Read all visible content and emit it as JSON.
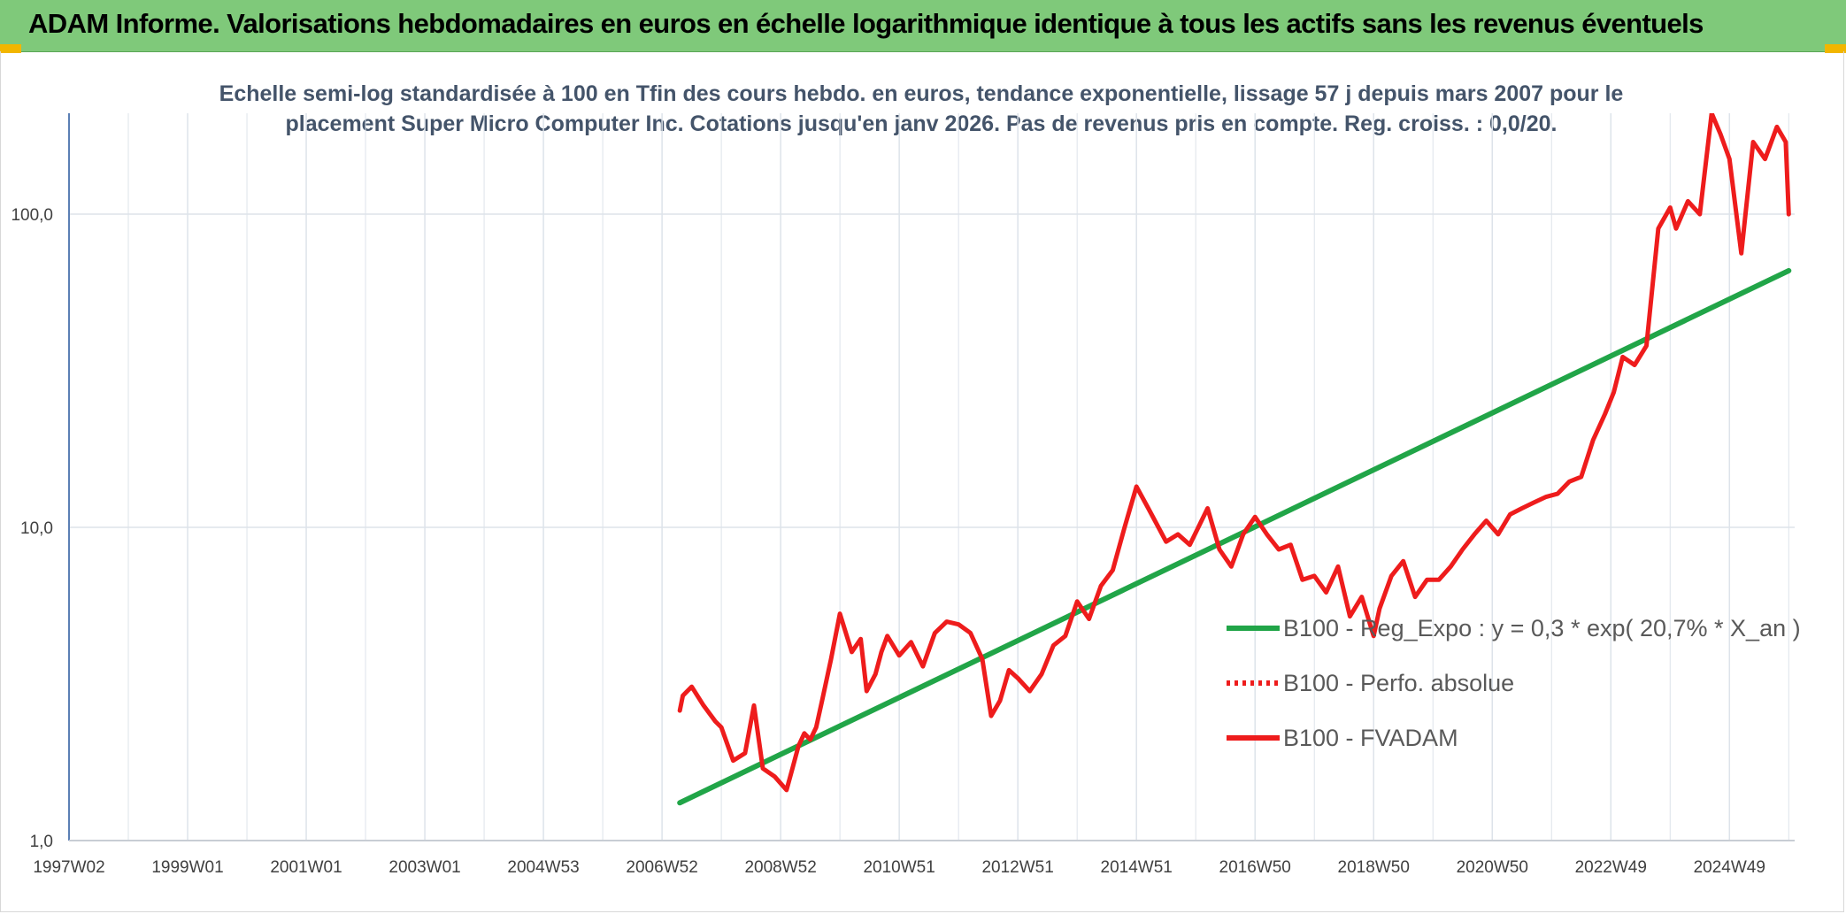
{
  "banner": {
    "title": "ADAM Informe. Valorisations hebdomadaires en euros en échelle logarithmique identique à tous les actifs sans les revenus éventuels"
  },
  "colors": {
    "banner_bg": "#7fc97a",
    "corner_marks": "#f2b600",
    "trend_line": "#21a548",
    "price_line": "#ee1c1c",
    "grid": "#dde3ea"
  },
  "chart_data": {
    "type": "line",
    "title_lines": [
      "Echelle semi-log standardisée à 100 en Tfin des cours hebdo. en euros, tendance exponentielle, lissage 57 j depuis mars 2007 pour le",
      "placement Super Micro Computer Inc. Cotations jusqu'en janv 2026. Pas de revenus pris en compte. Reg. croiss. : 0,0/20."
    ],
    "y_scale": "log",
    "ylim": [
      1,
      210
    ],
    "y_ticks": [
      {
        "value": 1,
        "label": "1,0"
      },
      {
        "value": 10,
        "label": "10,0"
      },
      {
        "value": 100,
        "label": "100,0"
      }
    ],
    "xlim": [
      1997.0,
      2026.1
    ],
    "x_ticks": [
      {
        "value": 1997.0,
        "label": "1997W02"
      },
      {
        "value": 1999.0,
        "label": "1999W01"
      },
      {
        "value": 2001.0,
        "label": "2001W01"
      },
      {
        "value": 2003.0,
        "label": "2003W01"
      },
      {
        "value": 2005.0,
        "label": "2004W53"
      },
      {
        "value": 2007.0,
        "label": "2006W52"
      },
      {
        "value": 2009.0,
        "label": "2008W52"
      },
      {
        "value": 2011.0,
        "label": "2010W51"
      },
      {
        "value": 2013.0,
        "label": "2012W51"
      },
      {
        "value": 2015.0,
        "label": "2014W51"
      },
      {
        "value": 2017.0,
        "label": "2016W50"
      },
      {
        "value": 2019.0,
        "label": "2018W50"
      },
      {
        "value": 2021.0,
        "label": "2020W50"
      },
      {
        "value": 2023.0,
        "label": "2022W49"
      },
      {
        "value": 2025.0,
        "label": "2024W49"
      }
    ],
    "grid": true,
    "legend_position": "right",
    "series": [
      {
        "name": "B100 - Reg_Expo : y = 0,3 * exp( 20,7% *  X_an )",
        "color": "#21a548",
        "style": "solid",
        "x": [
          2007.3,
          2026.0
        ],
        "y": [
          1.32,
          66
        ]
      },
      {
        "name": "B100 - Perfo. absolue",
        "color": "#ee1c1c",
        "style": "dotted",
        "x": [],
        "y": []
      },
      {
        "name": "B100 - FVADAM",
        "color": "#ee1c1c",
        "style": "solid",
        "x": [
          2007.3,
          2007.35,
          2007.5,
          2007.7,
          2007.9,
          2008.0,
          2008.2,
          2008.4,
          2008.55,
          2008.7,
          2008.9,
          2009.1,
          2009.2,
          2009.3,
          2009.4,
          2009.5,
          2009.6,
          2009.7,
          2009.85,
          2010.0,
          2010.2,
          2010.35,
          2010.45,
          2010.6,
          2010.7,
          2010.8,
          2011.0,
          2011.2,
          2011.4,
          2011.6,
          2011.8,
          2012.0,
          2012.2,
          2012.4,
          2012.55,
          2012.7,
          2012.85,
          2013.0,
          2013.2,
          2013.4,
          2013.6,
          2013.8,
          2014.0,
          2014.2,
          2014.4,
          2014.6,
          2014.8,
          2015.0,
          2015.2,
          2015.5,
          2015.7,
          2015.9,
          2016.2,
          2016.4,
          2016.6,
          2016.8,
          2017.0,
          2017.2,
          2017.4,
          2017.6,
          2017.8,
          2018.0,
          2018.2,
          2018.4,
          2018.6,
          2018.8,
          2019.0,
          2019.1,
          2019.3,
          2019.5,
          2019.7,
          2019.9,
          2020.1,
          2020.3,
          2020.5,
          2020.7,
          2020.9,
          2021.1,
          2021.3,
          2021.5,
          2021.7,
          2021.9,
          2022.1,
          2022.3,
          2022.5,
          2022.7,
          2022.9,
          2023.05,
          2023.2,
          2023.4,
          2023.6,
          2023.8,
          2024.0,
          2024.1,
          2024.3,
          2024.5,
          2024.7,
          2024.85,
          2025.0,
          2025.2,
          2025.4,
          2025.6,
          2025.8,
          2025.95,
          2026.0
        ],
        "y": [
          2.6,
          2.9,
          3.1,
          2.7,
          2.4,
          2.3,
          1.8,
          1.9,
          2.7,
          1.7,
          1.6,
          1.45,
          1.7,
          2.0,
          2.2,
          2.1,
          2.3,
          2.8,
          3.8,
          5.3,
          4.0,
          4.4,
          3.0,
          3.4,
          4.0,
          4.5,
          3.9,
          4.3,
          3.6,
          4.6,
          5.0,
          4.9,
          4.6,
          3.8,
          2.5,
          2.8,
          3.5,
          3.3,
          3.0,
          3.4,
          4.2,
          4.5,
          5.8,
          5.1,
          6.5,
          7.3,
          10.0,
          13.5,
          11.5,
          9.0,
          9.5,
          8.8,
          11.5,
          8.5,
          7.5,
          9.5,
          10.8,
          9.5,
          8.5,
          8.8,
          6.8,
          7.0,
          6.2,
          7.5,
          5.2,
          6.0,
          4.5,
          5.5,
          7.0,
          7.8,
          6.0,
          6.8,
          6.8,
          7.5,
          8.5,
          9.5,
          10.5,
          9.5,
          11.0,
          11.5,
          12.0,
          12.5,
          12.8,
          14.0,
          14.5,
          19.0,
          23.0,
          27.0,
          35.0,
          33.0,
          38.0,
          90.0,
          105.0,
          90.0,
          110.0,
          100.0,
          210.0,
          180.0,
          150.0,
          75.0,
          170.0,
          150.0,
          190.0,
          170.0,
          100.0
        ]
      }
    ]
  }
}
